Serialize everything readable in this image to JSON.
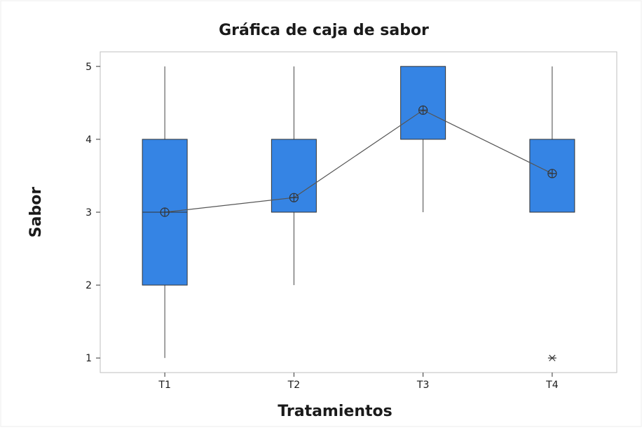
{
  "chart_data": {
    "type": "box",
    "title": "Gráfica de caja de sabor",
    "xlabel": "Tratamientos",
    "ylabel": "Sabor",
    "categories": [
      "T1",
      "T2",
      "T3",
      "T4"
    ],
    "ylim": [
      0.8,
      5.2
    ],
    "yticks": [
      1,
      2,
      3,
      4,
      5
    ],
    "grid": false,
    "boxes": [
      {
        "category": "T1",
        "whisker_low": 1,
        "q1": 2,
        "median": 3,
        "q3": 4,
        "whisker_high": 5,
        "mean": 3.0,
        "outliers": []
      },
      {
        "category": "T2",
        "whisker_low": 2,
        "q1": 3,
        "median": 3,
        "q3": 4,
        "whisker_high": 5,
        "mean": 3.2,
        "outliers": []
      },
      {
        "category": "T3",
        "whisker_low": 3,
        "q1": 4,
        "median": 4,
        "q3": 5,
        "whisker_high": 5,
        "mean": 4.4,
        "outliers": []
      },
      {
        "category": "T4",
        "whisker_low": 3,
        "q1": 3,
        "median": 3,
        "q3": 4,
        "whisker_high": 5,
        "mean": 3.53,
        "outliers": [
          1
        ]
      }
    ],
    "mean_line": true,
    "colors": {
      "box_fill": "#3584e4",
      "box_stroke": "#333333",
      "line": "#555555",
      "frame": "#bfbfbf",
      "background": "#ffffff"
    }
  }
}
